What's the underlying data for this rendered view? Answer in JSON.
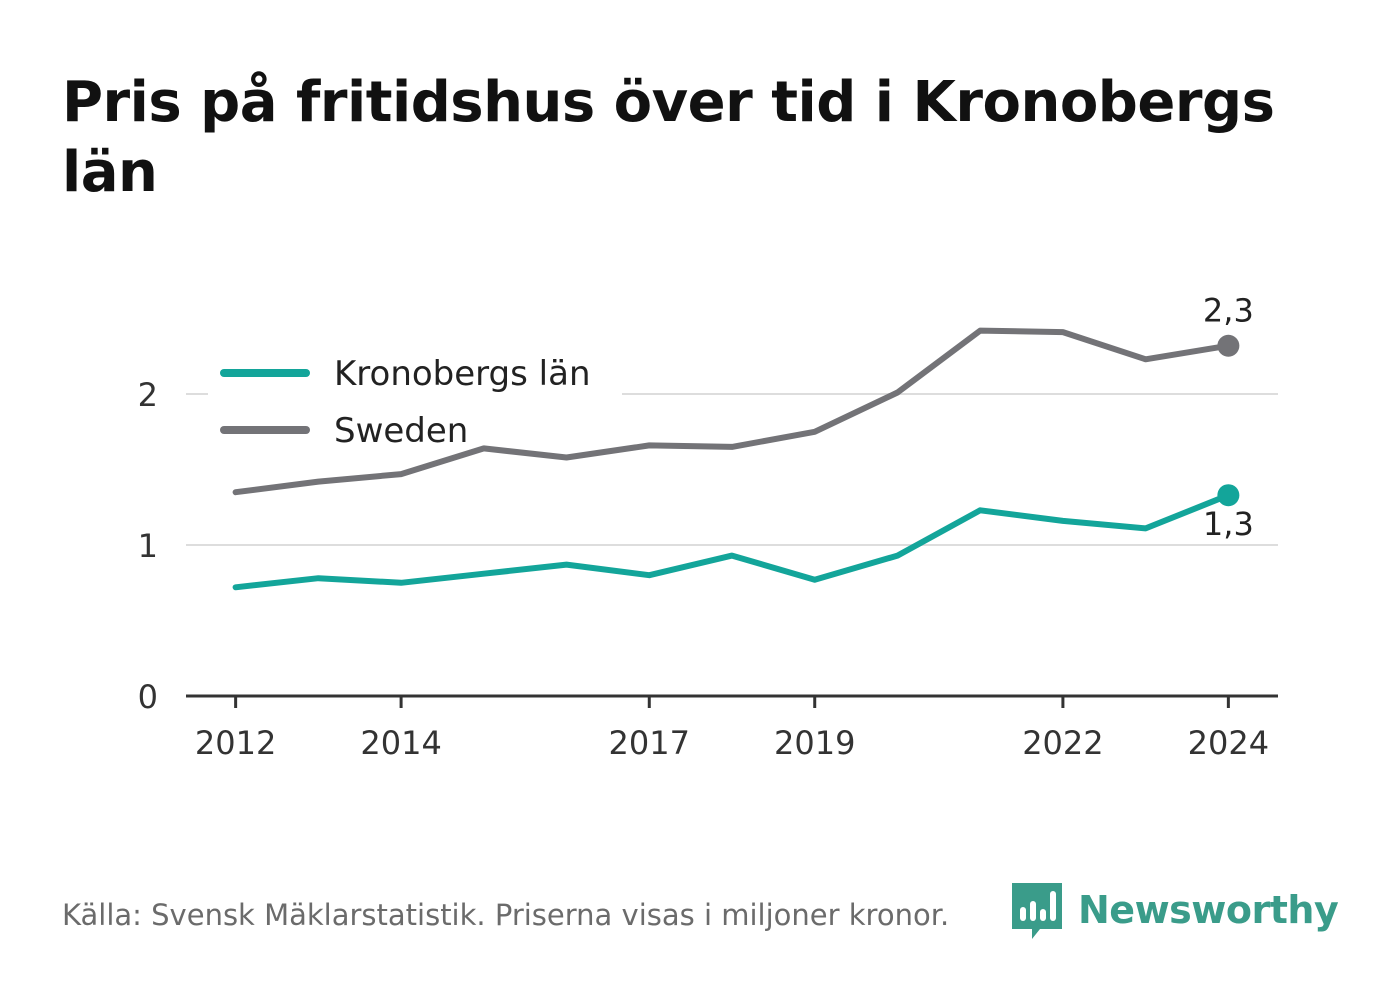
{
  "chart_data": {
    "type": "line",
    "title": "Pris på fritidshus över tid i Kronobergs län",
    "x": [
      2012,
      2013,
      2014,
      2015,
      2016,
      2017,
      2018,
      2019,
      2020,
      2021,
      2022,
      2023,
      2024
    ],
    "x_tick_labels": [
      "2012",
      "2014",
      "2017",
      "2019",
      "2022",
      "2024"
    ],
    "x_tick_values": [
      2012,
      2014,
      2017,
      2019,
      2022,
      2024
    ],
    "y_tick_labels": [
      "0",
      "1",
      "2"
    ],
    "y_tick_values": [
      0,
      1,
      2
    ],
    "ylim": [
      0,
      2.55
    ],
    "xlim": [
      2011.4,
      2024.6
    ],
    "grid": true,
    "legend_position": "top-left",
    "series": [
      {
        "name": "Kronobergs län",
        "color": "#13a59a",
        "values": [
          0.72,
          0.78,
          0.75,
          0.81,
          0.87,
          0.8,
          0.93,
          0.77,
          0.93,
          1.23,
          1.16,
          1.11,
          1.33
        ],
        "end_label": "1,3"
      },
      {
        "name": "Sweden",
        "color": "#737377",
        "values": [
          1.35,
          1.42,
          1.47,
          1.64,
          1.58,
          1.66,
          1.65,
          1.75,
          2.01,
          2.42,
          2.41,
          2.23,
          2.32
        ],
        "end_label": "2,3"
      }
    ]
  },
  "footer": {
    "source_text": "Källa: Svensk Mäklarstatistik. Priserna visas i miljoner kronor.",
    "brand_name": "Newsworthy",
    "brand_color": "#3a9c8a",
    "brand_icon": "bar-chart-speech-bubble-icon"
  }
}
